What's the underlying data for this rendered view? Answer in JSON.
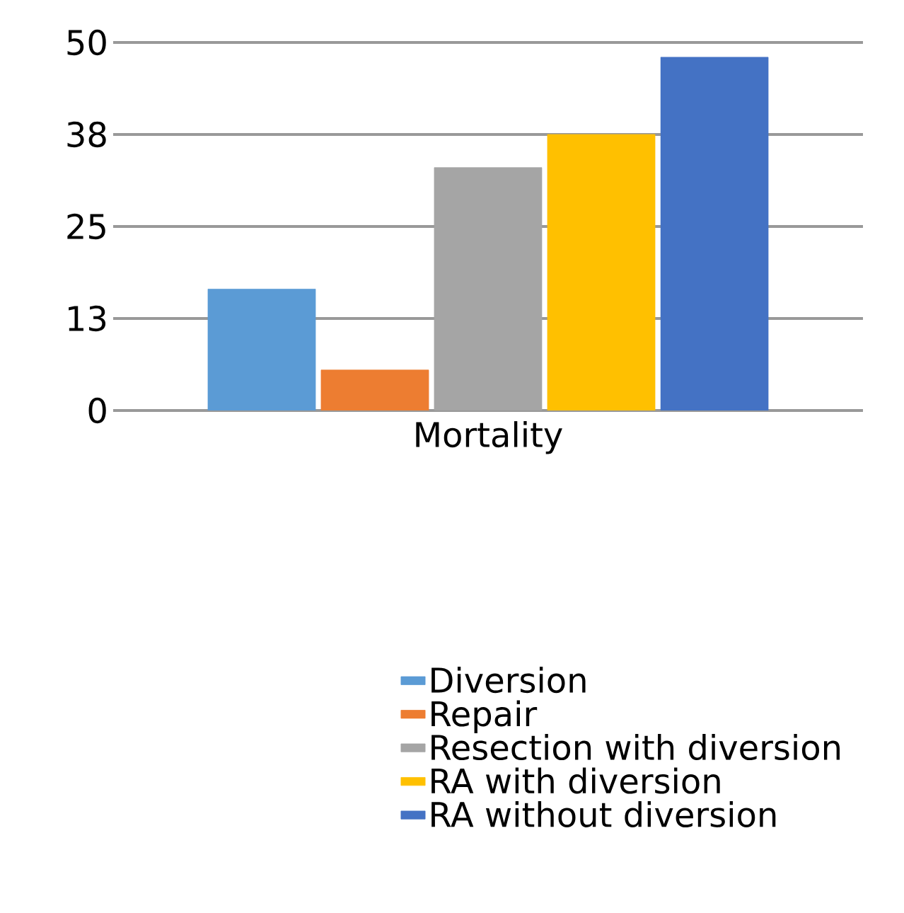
{
  "chart_data": {
    "type": "bar",
    "categories": [
      "Mortality"
    ],
    "series": [
      {
        "name": "Diversion",
        "color": "#5b9bd5",
        "values": [
          16.5
        ]
      },
      {
        "name": "Repair",
        "color": "#ed7d31",
        "values": [
          5.5
        ]
      },
      {
        "name": "Resection with diversion",
        "color": "#a5a5a5",
        "values": [
          33
        ]
      },
      {
        "name": "RA with diversion",
        "color": "#ffc000",
        "values": [
          37.5
        ]
      },
      {
        "name": "RA without diversion",
        "color": "#4472c4",
        "values": [
          48
        ]
      }
    ],
    "ylim": [
      0,
      50
    ],
    "yticks": [
      0,
      {
        "value": 12.5,
        "label": "13"
      },
      25,
      {
        "value": 37.5,
        "label": "38"
      },
      50
    ],
    "grid": "y",
    "legend": "bottom"
  }
}
